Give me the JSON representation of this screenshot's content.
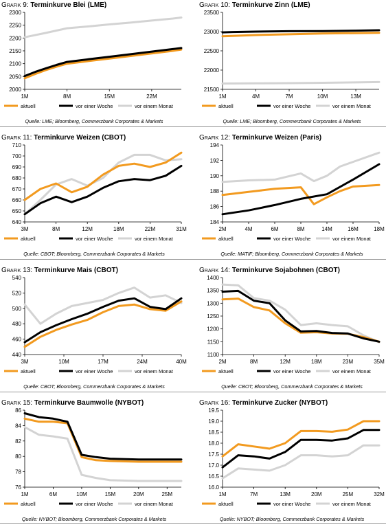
{
  "colors": {
    "aktuell": "#F29A1F",
    "woche": "#000000",
    "monat": "#D3D3D3",
    "axis": "#000000",
    "rule": "#999999"
  },
  "legend": [
    "aktuell",
    "vor einer Woche",
    "vor einem Monat"
  ],
  "chart_data": [
    {
      "type": "line",
      "label_prefix": "Grafik",
      "number": "9:",
      "title": "Terminkurve Blei (LME)",
      "x_labels": [
        "1M",
        "8M",
        "15M",
        "22M"
      ],
      "x_label_pos": [
        0,
        1,
        2,
        3
      ],
      "x_max": 3.7,
      "y_ticks": [
        2000,
        2050,
        2100,
        2150,
        2200,
        2250,
        2300
      ],
      "ylim": [
        2000,
        2300
      ],
      "series": [
        {
          "name": "aktuell",
          "x": [
            0,
            0.25,
            0.5,
            0.75,
            1,
            1.5,
            2,
            2.5,
            3,
            3.5,
            3.7
          ],
          "y": [
            2043,
            2060,
            2075,
            2088,
            2100,
            2110,
            2120,
            2130,
            2140,
            2150,
            2155
          ]
        },
        {
          "name": "vor einer Woche",
          "x": [
            0,
            0.25,
            0.5,
            0.75,
            1,
            1.5,
            2,
            2.5,
            3,
            3.5,
            3.7
          ],
          "y": [
            2052,
            2068,
            2082,
            2095,
            2107,
            2117,
            2127,
            2137,
            2147,
            2157,
            2161
          ]
        },
        {
          "name": "vor einem Monat",
          "x": [
            0,
            0.5,
            1,
            1.5,
            2,
            2.5,
            3,
            3.5,
            3.7
          ],
          "y": [
            2203,
            2220,
            2238,
            2245,
            2253,
            2260,
            2268,
            2276,
            2280
          ]
        }
      ],
      "source": "Quelle: LME; Bloomberg, Commerzbank Corporates & Markets"
    },
    {
      "type": "line",
      "label_prefix": "Grafik",
      "number": "10:",
      "title": "Terminkurve Zinn (LME)",
      "x_labels": [
        "1M",
        "4M",
        "7M",
        "10M",
        "13M"
      ],
      "x_label_pos": [
        0,
        1,
        2,
        3,
        4
      ],
      "x_max": 4.7,
      "y_ticks": [
        21500,
        22000,
        22500,
        23000,
        23500
      ],
      "ylim": [
        21500,
        23500
      ],
      "series": [
        {
          "name": "aktuell",
          "x": [
            0,
            0.3,
            1,
            2,
            3,
            4,
            4.7
          ],
          "y": [
            22880,
            22890,
            22910,
            22930,
            22950,
            22960,
            22970
          ]
        },
        {
          "name": "vor einer Woche",
          "x": [
            0,
            0.3,
            1,
            2,
            3,
            4,
            4.7
          ],
          "y": [
            22980,
            22990,
            23000,
            23010,
            23015,
            23025,
            23035
          ]
        },
        {
          "name": "vor einem Monat",
          "x": [
            0,
            1,
            2,
            3,
            4,
            4.7
          ],
          "y": [
            21650,
            21655,
            21660,
            21670,
            21680,
            21690
          ]
        }
      ],
      "source": "Quelle: LME; Bloomberg, Commerzbank Corporates & Markets"
    },
    {
      "type": "line",
      "label_prefix": "Grafik",
      "number": "11:",
      "title": "Terminkurve Weizen (CBOT)",
      "x_labels": [
        "3M",
        "8M",
        "12M",
        "18M",
        "22M",
        "31M"
      ],
      "x_label_pos": [
        0,
        2,
        4,
        6,
        8,
        10
      ],
      "x_max": 10,
      "y_ticks": [
        640,
        650,
        660,
        670,
        680,
        690,
        700,
        710
      ],
      "ylim": [
        640,
        710
      ],
      "series": [
        {
          "name": "aktuell",
          "x": [
            0,
            1,
            2,
            3,
            4,
            5,
            6,
            7,
            8,
            9,
            10
          ],
          "y": [
            660,
            670,
            675,
            667,
            672,
            683,
            691,
            693,
            690,
            694,
            703
          ]
        },
        {
          "name": "vor einer Woche",
          "x": [
            0,
            1,
            2,
            3,
            4,
            5,
            6,
            7,
            8,
            9,
            10
          ],
          "y": [
            647,
            657,
            663,
            658,
            663,
            671,
            677,
            679,
            678,
            682,
            691
          ]
        },
        {
          "name": "vor einem Monat",
          "x": [
            0,
            1,
            2,
            3,
            4,
            5,
            6,
            7,
            8,
            9,
            10
          ],
          "y": [
            647,
            660,
            674,
            679,
            673,
            680,
            694,
            701,
            701,
            696,
            697
          ]
        }
      ],
      "source": "Quelle: CBOT; Bloomberg, Commerzbank Corporates & Markets"
    },
    {
      "type": "line",
      "label_prefix": "Grafik",
      "number": "12:",
      "title": "Terminkurve Weizen (Paris)",
      "x_labels": [
        "2M",
        "4M",
        "6M",
        "8M",
        "14M",
        "16M",
        "18M"
      ],
      "x_label_pos": [
        0,
        1,
        2,
        3,
        4,
        5,
        6
      ],
      "x_max": 6,
      "y_ticks": [
        184,
        186,
        188,
        190,
        192,
        194
      ],
      "ylim": [
        184,
        194
      ],
      "series": [
        {
          "name": "aktuell",
          "x": [
            0,
            1,
            2,
            3,
            3.5,
            4,
            4.5,
            5,
            6
          ],
          "y": [
            187.5,
            187.9,
            188.3,
            188.5,
            186.3,
            187.2,
            188,
            188.6,
            188.8
          ]
        },
        {
          "name": "vor einer Woche",
          "x": [
            0,
            1,
            2,
            3,
            4,
            5,
            6
          ],
          "y": [
            185,
            185.5,
            186.2,
            187,
            187.6,
            189.5,
            191.5
          ]
        },
        {
          "name": "vor einem Monat",
          "x": [
            0,
            1,
            2,
            3,
            3.5,
            4,
            4.5,
            5,
            6
          ],
          "y": [
            189.2,
            189.4,
            189.5,
            190.3,
            189.3,
            190,
            191.2,
            191.8,
            193
          ]
        }
      ],
      "source": "Quelle: MATIF; Bloomberg, Commerzbank Corporates & Markets"
    },
    {
      "type": "line",
      "label_prefix": "Grafik",
      "number": "13:",
      "title": "Terminkurve Mais (CBOT)",
      "x_labels": [
        "3M",
        "10M",
        "17M",
        "24M",
        "40M"
      ],
      "x_label_pos": [
        0,
        2.5,
        5,
        7.5,
        10
      ],
      "x_max": 10,
      "y_ticks": [
        440,
        460,
        480,
        500,
        520,
        540
      ],
      "ylim": [
        440,
        540
      ],
      "series": [
        {
          "name": "aktuell",
          "x": [
            0,
            1,
            2,
            3,
            4,
            5,
            6,
            7,
            8,
            9,
            10
          ],
          "y": [
            450,
            463,
            472,
            479,
            485,
            495,
            503,
            505,
            499,
            497,
            509
          ]
        },
        {
          "name": "vor einer Woche",
          "x": [
            0,
            1,
            2,
            3,
            4,
            5,
            6,
            7,
            8,
            9,
            10
          ],
          "y": [
            456,
            469,
            478,
            486,
            493,
            502,
            510,
            513,
            502,
            499,
            513
          ]
        },
        {
          "name": "vor einem Monat",
          "x": [
            0,
            1,
            2,
            3,
            4,
            5,
            6,
            7,
            8,
            9,
            10
          ],
          "y": [
            505,
            480,
            493,
            503,
            507,
            511,
            520,
            527,
            514,
            517,
            507
          ]
        }
      ],
      "source": "Quelle: CBOT; Bloomberg, Commerzbank Corporates & Markets"
    },
    {
      "type": "line",
      "label_prefix": "Grafik",
      "number": "14:",
      "title": "Terminkurve Sojabohnen (CBOT)",
      "x_labels": [
        "2M",
        "8M",
        "12M",
        "18M",
        "23M",
        "35M"
      ],
      "x_label_pos": [
        0,
        2,
        4,
        6,
        8,
        10
      ],
      "x_max": 10,
      "y_ticks": [
        1100,
        1150,
        1200,
        1250,
        1300,
        1350,
        1400
      ],
      "ylim": [
        1100,
        1400
      ],
      "series": [
        {
          "name": "aktuell",
          "x": [
            0,
            1,
            2,
            3,
            4,
            5,
            6,
            7,
            8,
            9,
            10
          ],
          "y": [
            1315,
            1318,
            1285,
            1272,
            1222,
            1185,
            1187,
            1182,
            1181,
            1168,
            1150
          ]
        },
        {
          "name": "vor einer Woche",
          "x": [
            0,
            1,
            2,
            3,
            4,
            5,
            6,
            7,
            8,
            9,
            10
          ],
          "y": [
            1345,
            1348,
            1310,
            1300,
            1233,
            1190,
            1192,
            1184,
            1182,
            1163,
            1150
          ]
        },
        {
          "name": "vor einem Monat",
          "x": [
            0,
            1,
            2,
            3,
            4,
            5,
            6,
            7,
            8,
            9,
            10
          ],
          "y": [
            1373,
            1370,
            1320,
            1310,
            1275,
            1215,
            1222,
            1215,
            1210,
            1175,
            1148
          ]
        }
      ],
      "source": "Quelle: CBOT; Bloomberg, Commerzbank Corporates & Markets"
    },
    {
      "type": "line",
      "label_prefix": "Grafik",
      "number": "15:",
      "title": "Terminkurve Baumwolle (NYBOT)",
      "x_labels": [
        "1M",
        "6M",
        "10M",
        "15M",
        "20M",
        "25M"
      ],
      "x_label_pos": [
        0,
        2,
        4,
        6,
        8,
        10
      ],
      "x_max": 11,
      "y_ticks": [
        76,
        78,
        80,
        82,
        84,
        86
      ],
      "ylim": [
        76,
        86
      ],
      "series": [
        {
          "name": "aktuell",
          "x": [
            0,
            1,
            2,
            3,
            4,
            5,
            6,
            8,
            10,
            11
          ],
          "y": [
            84.9,
            84.5,
            84.5,
            84.3,
            79.9,
            79.5,
            79.4,
            79.3,
            79.3,
            79.3
          ]
        },
        {
          "name": "vor einer Woche",
          "x": [
            0,
            1,
            2,
            3,
            4,
            5,
            6,
            8,
            10,
            11
          ],
          "y": [
            85.6,
            85.1,
            84.9,
            84.5,
            80.2,
            79.9,
            79.7,
            79.6,
            79.6,
            79.6
          ]
        },
        {
          "name": "vor einem Monat",
          "x": [
            0,
            1,
            2,
            3,
            4,
            5,
            6,
            8,
            10,
            11
          ],
          "y": [
            83.8,
            82.8,
            82.6,
            82.3,
            77.6,
            77.2,
            76.9,
            76.8,
            76.8,
            76.8
          ]
        }
      ],
      "source": "Quelle: NYBOT; Bloomberg, Commerzbank Corporates & Markets"
    },
    {
      "type": "line",
      "label_prefix": "Grafik",
      "number": "16:",
      "title": "Terminkurve Zucker (NYBOT)",
      "x_labels": [
        "1M",
        "7M",
        "13M",
        "20M",
        "25M",
        "32M"
      ],
      "x_label_pos": [
        0,
        2,
        4,
        6,
        8,
        10
      ],
      "x_max": 10,
      "y_ticks": [
        16.0,
        16.5,
        17.0,
        17.5,
        18.0,
        18.5,
        19.0,
        19.5
      ],
      "ylim": [
        16,
        19.5
      ],
      "y_decimals": 1,
      "series": [
        {
          "name": "aktuell",
          "x": [
            0,
            1,
            2,
            3,
            4,
            5,
            6,
            7,
            8,
            9,
            10
          ],
          "y": [
            17.4,
            17.95,
            17.85,
            17.75,
            18.0,
            18.55,
            18.55,
            18.52,
            18.62,
            19.0,
            19.0
          ]
        },
        {
          "name": "vor einer Woche",
          "x": [
            0,
            1,
            2,
            3,
            4,
            5,
            6,
            7,
            8,
            9,
            10
          ],
          "y": [
            16.9,
            17.45,
            17.4,
            17.3,
            17.6,
            18.15,
            18.15,
            18.12,
            18.22,
            18.6,
            18.6
          ]
        },
        {
          "name": "vor einem Monat",
          "x": [
            0,
            1,
            2,
            3,
            4,
            5,
            6,
            7,
            8,
            9,
            10
          ],
          "y": [
            16.4,
            16.85,
            16.8,
            16.75,
            17.0,
            17.45,
            17.45,
            17.4,
            17.45,
            17.9,
            17.9
          ]
        }
      ],
      "source": "Quelle: NYBOT; Bloomberg, Commerzbank Corporates & Markets"
    }
  ]
}
